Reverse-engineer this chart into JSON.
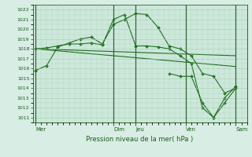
{
  "title": "Pression niveau de la mer( hPa )",
  "bg_color": "#d8ede4",
  "plot_bg": "#cce8dc",
  "grid_color": "#aaccaa",
  "line_color": "#1a6b1a",
  "dark_line": "#1a5c1a",
  "ylim": [
    1010.5,
    1022.5
  ],
  "yticks": [
    1011,
    1012,
    1013,
    1014,
    1015,
    1016,
    1017,
    1018,
    1019,
    1020,
    1021,
    1022
  ],
  "day_labels": [
    "Mer",
    "Dim",
    "Jeu",
    "Ven",
    "Sam"
  ],
  "day_positions": [
    0,
    14,
    18,
    27,
    36
  ],
  "vline_positions": [
    0,
    14,
    18,
    27,
    36
  ],
  "xlim": [
    -0.5,
    38
  ],
  "line1_x": [
    0,
    2,
    4,
    6,
    8,
    10,
    12,
    14,
    16,
    18,
    20,
    22,
    24,
    26,
    28,
    30,
    32,
    34,
    36
  ],
  "line1_y": [
    1015.8,
    1016.3,
    1018.2,
    1018.6,
    1019.0,
    1019.2,
    1018.5,
    1020.5,
    1021.0,
    1021.6,
    1021.5,
    1020.2,
    1018.3,
    1018.0,
    1017.3,
    1015.5,
    1015.2,
    1013.5,
    1014.0
  ],
  "line2_x": [
    0,
    2,
    4,
    6,
    8,
    10,
    12,
    14,
    16,
    18,
    20,
    22,
    24,
    26,
    28,
    30,
    32,
    34,
    36
  ],
  "line2_y": [
    1018.0,
    1018.1,
    1018.3,
    1018.5,
    1018.5,
    1018.6,
    1018.4,
    1021.0,
    1021.5,
    1018.3,
    1018.3,
    1018.2,
    1018.0,
    1017.3,
    1016.5,
    1012.0,
    1011.0,
    1013.0,
    1014.2
  ],
  "line3_x": [
    0,
    36
  ],
  "line3_y": [
    1018.0,
    1017.3
  ],
  "line4_x": [
    0,
    36
  ],
  "line4_y": [
    1018.0,
    1016.2
  ],
  "line5_x": [
    24,
    26,
    28,
    30,
    32,
    34,
    36
  ],
  "line5_y": [
    1015.5,
    1015.2,
    1015.2,
    1012.5,
    1011.0,
    1012.5,
    1014.0
  ]
}
